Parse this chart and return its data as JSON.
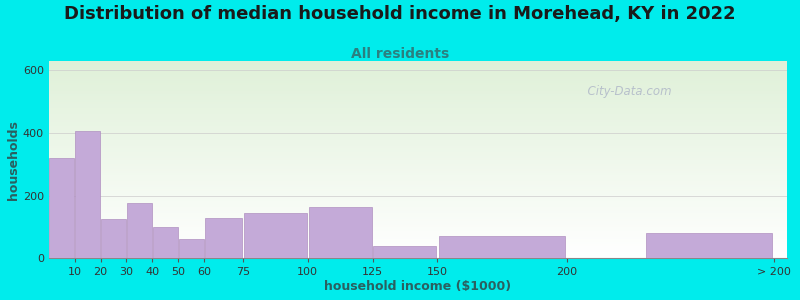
{
  "title": "Distribution of median household income in Morehead, KY in 2022",
  "subtitle": "All residents",
  "xlabel": "household income ($1000)",
  "ylabel": "households",
  "background_outer": "#00ecec",
  "bar_color": "#c4aad8",
  "bar_edge_color": "#b090c0",
  "values": [
    320,
    405,
    125,
    175,
    100,
    60,
    130,
    145,
    165,
    38,
    70,
    80
  ],
  "ylim": [
    0,
    630
  ],
  "yticks": [
    0,
    200,
    400,
    600
  ],
  "watermark": "  City-Data.com",
  "plot_bg_top_color": "#dff0d8",
  "plot_bg_bottom_color": "#ffffff",
  "title_fontsize": 13,
  "subtitle_fontsize": 10,
  "axis_label_fontsize": 9,
  "tick_fontsize": 8,
  "title_color": "#1a1a1a",
  "subtitle_color": "#2a8080",
  "axis_label_color": "#2a6060",
  "watermark_color": "#b0b8c8"
}
